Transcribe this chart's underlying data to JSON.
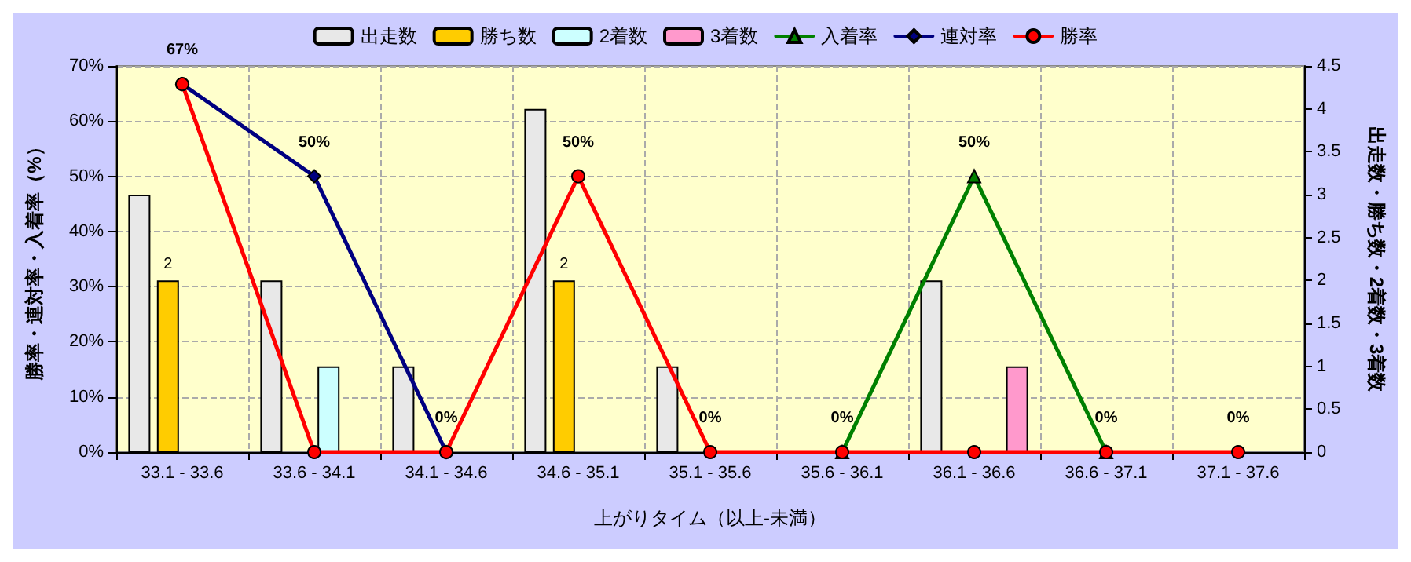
{
  "chart_data": {
    "type": "bar",
    "xlabel": "上がりタイム（以上-未満）",
    "ylabel": "勝率・連対率・入着率（%）",
    "y2label": "出走数・勝ち数・2着数・3着数",
    "categories": [
      "33.1 - 33.6",
      "33.6 - 34.1",
      "34.1 - 34.6",
      "34.6 - 35.1",
      "35.1 - 35.6",
      "35.6 - 36.1",
      "36.1 - 36.6",
      "36.6 - 37.1",
      "37.1 - 37.6"
    ],
    "series": [
      {
        "name": "出走数",
        "axis": "y2",
        "color": "#e8e8e8",
        "values": [
          3,
          2,
          1,
          4,
          1,
          null,
          2,
          null,
          null
        ]
      },
      {
        "name": "勝ち数",
        "axis": "y2",
        "color": "#ffcc00",
        "values": [
          2,
          null,
          null,
          2,
          null,
          null,
          null,
          null,
          null
        ],
        "value_labels": [
          "2",
          null,
          null,
          "2",
          null,
          null,
          null,
          null,
          null
        ]
      },
      {
        "name": "2着数",
        "axis": "y2",
        "color": "#ccffff",
        "values": [
          null,
          1,
          null,
          null,
          null,
          null,
          null,
          null,
          null
        ]
      },
      {
        "name": "3着数",
        "axis": "y2",
        "color": "#ff99cc",
        "values": [
          null,
          null,
          null,
          null,
          null,
          null,
          1,
          null,
          null
        ]
      },
      {
        "name": "入着率",
        "type": "line",
        "color": "#008000",
        "marker": "triangle",
        "values": [
          null,
          null,
          null,
          null,
          null,
          0,
          50,
          0,
          null
        ],
        "value_labels": [
          null,
          null,
          null,
          null,
          null,
          "0%",
          "50%",
          null,
          null
        ]
      },
      {
        "name": "連対率",
        "type": "line",
        "color": "#000080",
        "marker": "diamond",
        "values": [
          66.7,
          50,
          0,
          null,
          null,
          null,
          null,
          null,
          null
        ],
        "value_labels": [
          null,
          "50%",
          "0%",
          null,
          null,
          null,
          null,
          null,
          null
        ]
      },
      {
        "name": "勝率",
        "type": "line",
        "color": "#ff0000",
        "marker": "circle",
        "values": [
          66.7,
          0,
          0,
          50,
          0,
          0,
          0,
          0,
          0
        ],
        "value_labels": [
          "67%",
          null,
          null,
          "50%",
          "0%",
          null,
          null,
          "0%",
          "0%"
        ]
      }
    ],
    "ylim": [
      0,
      70
    ],
    "yticks": [
      {
        "value": 0,
        "label": "0%"
      },
      {
        "value": 10,
        "label": "10%"
      },
      {
        "value": 20,
        "label": "20%"
      },
      {
        "value": 30,
        "label": "30%"
      },
      {
        "value": 40,
        "label": "40%"
      },
      {
        "value": 50,
        "label": "50%"
      },
      {
        "value": 60,
        "label": "60%"
      },
      {
        "value": 70,
        "label": "70%"
      }
    ],
    "y2lim": [
      0,
      4.5
    ],
    "y2ticks": [
      0,
      0.5,
      1,
      1.5,
      2,
      2.5,
      3,
      3.5,
      4,
      4.5
    ],
    "grid": true,
    "legend": "top"
  }
}
